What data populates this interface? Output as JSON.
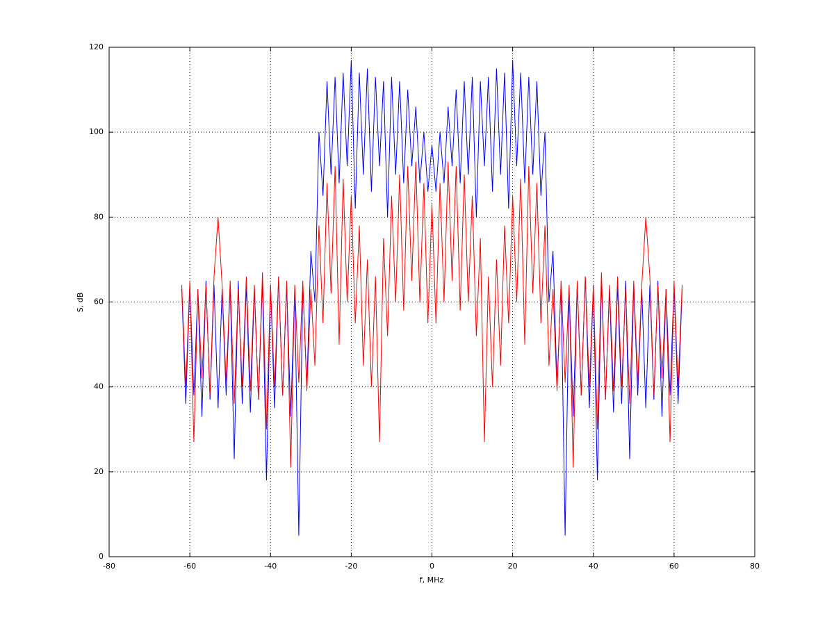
{
  "chart_data": {
    "type": "line",
    "xlabel": "f, MHz",
    "ylabel": "S, dB",
    "x": [
      -62,
      -61,
      -60,
      -59,
      -58,
      -57,
      -56,
      -55,
      -54,
      -53,
      -52,
      -51,
      -50,
      -49,
      -48,
      -47,
      -46,
      -45,
      -44,
      -43,
      -42,
      -41,
      -40,
      -39,
      -38,
      -37,
      -36,
      -35,
      -34,
      -33,
      -32,
      -31,
      -30,
      -29,
      -28,
      -27,
      -26,
      -25,
      -24,
      -23,
      -22,
      -21,
      -20,
      -19,
      -18,
      -17,
      -16,
      -15,
      -14,
      -13,
      -12,
      -11,
      -10,
      -9,
      -8,
      -7,
      -6,
      -5,
      -4,
      -3,
      -2,
      -1,
      0,
      1,
      2,
      3,
      4,
      5,
      6,
      7,
      8,
      9,
      10,
      11,
      12,
      13,
      14,
      15,
      16,
      17,
      18,
      19,
      20,
      21,
      22,
      23,
      24,
      25,
      26,
      27,
      28,
      29,
      30,
      31,
      32,
      33,
      34,
      35,
      36,
      37,
      38,
      39,
      40,
      41,
      42,
      43,
      44,
      45,
      46,
      47,
      48,
      49,
      50,
      51,
      52,
      53,
      54,
      55,
      56,
      57,
      58,
      59,
      60,
      61,
      62
    ],
    "series": [
      {
        "color": "#0000ff",
        "values": [
          63,
          36,
          64,
          38,
          63,
          33,
          65,
          37,
          64,
          35,
          63,
          38,
          64,
          23,
          65,
          36,
          64,
          34,
          63,
          37,
          65,
          18,
          64,
          35,
          66,
          38,
          64,
          33,
          63,
          5,
          64,
          40,
          72,
          60,
          100,
          85,
          112,
          90,
          113,
          88,
          114,
          92,
          117,
          82,
          114,
          90,
          115,
          86,
          113,
          92,
          112,
          80,
          113,
          90,
          112,
          88,
          110,
          92,
          106,
          88,
          100,
          86,
          97,
          86,
          100,
          88,
          106,
          92,
          110,
          88,
          112,
          90,
          113,
          80,
          112,
          92,
          113,
          86,
          115,
          90,
          114,
          82,
          117,
          92,
          114,
          88,
          113,
          90,
          112,
          85,
          100,
          60,
          72,
          40,
          64,
          5,
          63,
          33,
          64,
          38,
          66,
          35,
          64,
          18,
          65,
          37,
          63,
          34,
          64,
          36,
          65,
          23,
          64,
          38,
          63,
          35,
          64,
          37,
          65,
          33,
          63,
          38,
          64,
          36,
          63
        ]
      },
      {
        "color": "#ff0000",
        "values": [
          64,
          40,
          65,
          27,
          63,
          42,
          64,
          38,
          66,
          80,
          64,
          41,
          65,
          36,
          63,
          40,
          66,
          39,
          64,
          37,
          67,
          30,
          64,
          40,
          66,
          38,
          65,
          21,
          64,
          41,
          65,
          39,
          63,
          45,
          78,
          55,
          88,
          62,
          92,
          50,
          89,
          60,
          85,
          55,
          78,
          45,
          70,
          40,
          66,
          27,
          75,
          52,
          85,
          60,
          90,
          58,
          92,
          65,
          93,
          60,
          88,
          55,
          83,
          55,
          88,
          60,
          93,
          65,
          92,
          58,
          90,
          60,
          85,
          52,
          75,
          27,
          66,
          40,
          70,
          45,
          78,
          55,
          85,
          60,
          89,
          50,
          92,
          62,
          88,
          55,
          78,
          45,
          63,
          39,
          65,
          41,
          64,
          21,
          65,
          38,
          66,
          40,
          64,
          30,
          67,
          37,
          64,
          39,
          66,
          40,
          63,
          36,
          65,
          41,
          64,
          80,
          66,
          38,
          64,
          42,
          63,
          27,
          65,
          40,
          64
        ]
      }
    ],
    "xlim": [
      -80,
      80
    ],
    "xticks": [
      -80,
      -60,
      -40,
      -20,
      0,
      20,
      40,
      60,
      80
    ],
    "ylim": [
      0,
      120
    ],
    "yticks": [
      0,
      20,
      40,
      60,
      80,
      100,
      120
    ],
    "grid": true
  }
}
